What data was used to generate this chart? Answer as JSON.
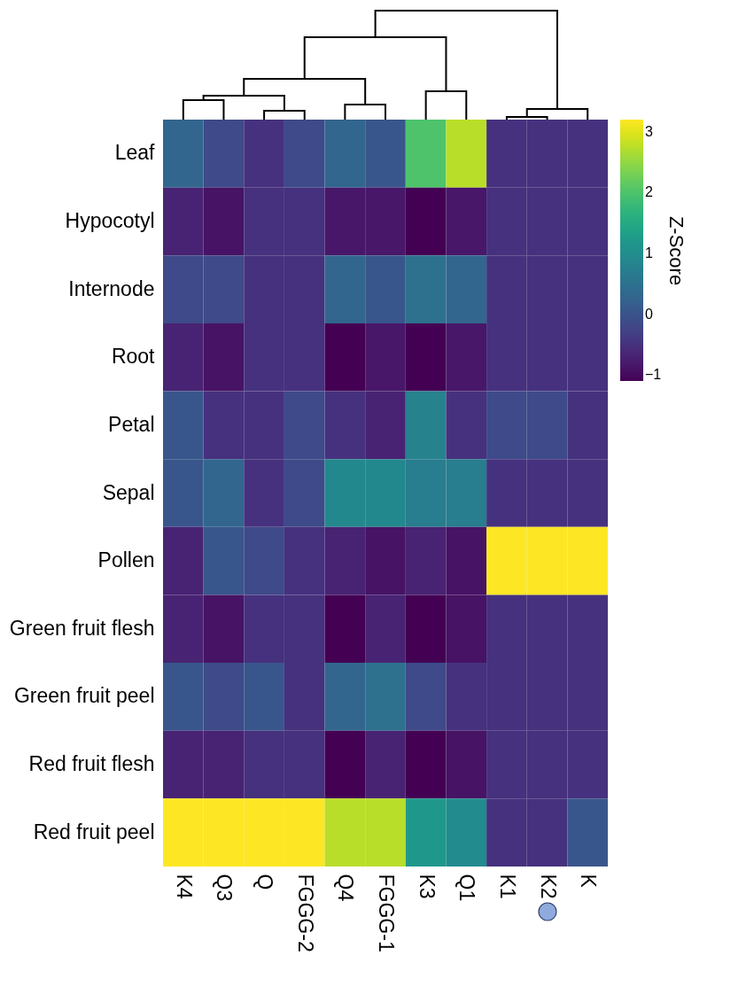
{
  "chart_data": {
    "type": "heatmap",
    "categories": [
      "K4",
      "Q3",
      "Q",
      "FGGG-2",
      "Q4",
      "FGGG-1",
      "K3",
      "Q1",
      "K1",
      "K2",
      "K"
    ],
    "y_categories": [
      "Leaf",
      "Hypocotyl",
      "Internode",
      "Root",
      "Petal",
      "Sepal",
      "Pollen",
      "Green fruit flesh",
      "Green fruit peel",
      "Red fruit flesh",
      "Red fruit peel"
    ],
    "cells": [
      [
        0.3,
        -0.15,
        -0.5,
        -0.15,
        0.3,
        0.05,
        2.0,
        2.75,
        -0.5,
        -0.5,
        -0.5
      ],
      [
        -0.7,
        -0.9,
        -0.5,
        -0.5,
        -0.85,
        -0.85,
        -1.1,
        -0.85,
        -0.5,
        -0.5,
        -0.5
      ],
      [
        -0.15,
        -0.15,
        -0.5,
        -0.5,
        0.3,
        0.05,
        0.5,
        0.3,
        -0.5,
        -0.5,
        -0.5
      ],
      [
        -0.7,
        -0.9,
        -0.5,
        -0.5,
        -1.1,
        -0.85,
        -1.1,
        -0.85,
        -0.5,
        -0.5,
        -0.5
      ],
      [
        0.05,
        -0.5,
        -0.5,
        -0.15,
        -0.5,
        -0.7,
        0.8,
        -0.5,
        -0.15,
        -0.15,
        -0.5
      ],
      [
        0.05,
        0.3,
        -0.5,
        -0.15,
        0.9,
        0.9,
        0.7,
        0.7,
        -0.5,
        -0.5,
        -0.5
      ],
      [
        -0.7,
        0.05,
        -0.15,
        -0.5,
        -0.7,
        -0.9,
        -0.7,
        -0.9,
        3.2,
        3.2,
        3.2
      ],
      [
        -0.7,
        -0.9,
        -0.5,
        -0.5,
        -1.1,
        -0.7,
        -1.1,
        -0.9,
        -0.5,
        -0.5,
        -0.5
      ],
      [
        0.05,
        -0.15,
        0.05,
        -0.5,
        0.3,
        0.5,
        -0.15,
        -0.5,
        -0.5,
        -0.5,
        -0.5
      ],
      [
        -0.7,
        -0.7,
        -0.5,
        -0.5,
        -1.1,
        -0.7,
        -1.1,
        -0.9,
        -0.5,
        -0.5,
        -0.5
      ],
      [
        3.2,
        3.2,
        3.2,
        3.2,
        2.75,
        2.75,
        1.2,
        0.95,
        -0.5,
        -0.5,
        0.05
      ]
    ],
    "clabel": "Z-Score",
    "clim": [
      -1.1,
      3.2
    ],
    "cticks": [
      -1,
      0,
      1,
      2,
      3
    ]
  }
}
